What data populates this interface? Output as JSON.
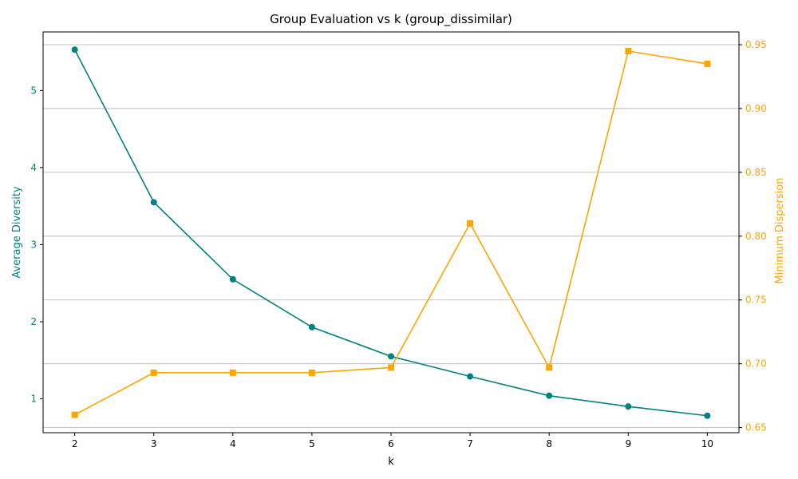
{
  "chart_data": {
    "type": "line",
    "title": "Group Evaluation vs k (group_dissimilar)",
    "xlabel": "k",
    "x": [
      2,
      3,
      4,
      5,
      6,
      7,
      8,
      9,
      10
    ],
    "xlim": [
      1.6,
      10.4
    ],
    "y_left": {
      "label": "Average Diversity",
      "color": "#008080",
      "lim": [
        0.56,
        5.76
      ],
      "ticks": [
        1,
        2,
        3,
        4,
        5
      ]
    },
    "y_right": {
      "label": "Minimum Dispersion",
      "color": "#FFA500",
      "lim": [
        0.646,
        0.96
      ],
      "ticks": [
        0.65,
        0.7,
        0.75,
        0.8,
        0.85,
        0.9,
        0.95
      ],
      "tick_labels": [
        "0.65",
        "0.70",
        "0.75",
        "0.80",
        "0.85",
        "0.90",
        "0.95"
      ]
    },
    "grid": "horizontal (right axis)",
    "series": [
      {
        "axis": "left",
        "marker": "circle",
        "color": "#008080",
        "values": [
          5.53,
          3.55,
          2.55,
          1.93,
          1.55,
          1.29,
          1.04,
          0.9,
          0.78
        ]
      },
      {
        "axis": "right",
        "marker": "square",
        "color": "#FFA500",
        "values": [
          0.66,
          0.693,
          0.693,
          0.693,
          0.697,
          0.81,
          0.697,
          0.945,
          0.935
        ]
      }
    ]
  }
}
